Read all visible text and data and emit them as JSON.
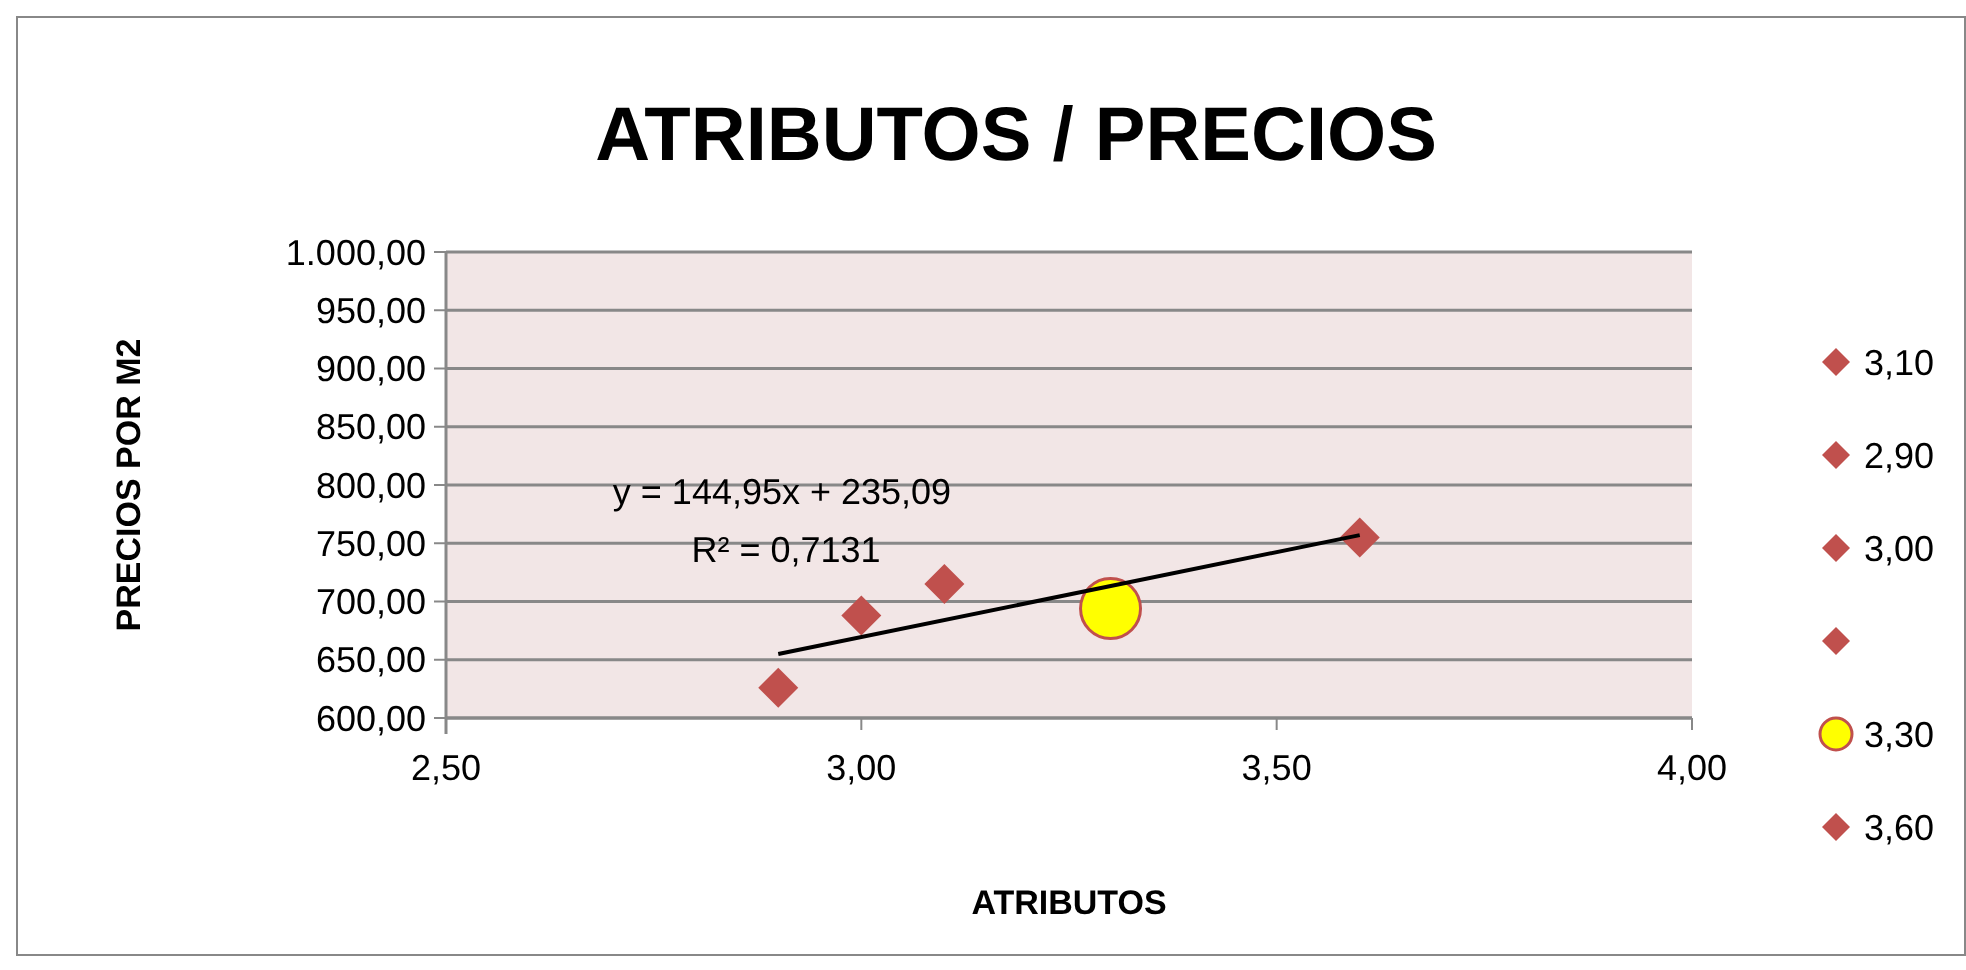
{
  "chart_data": {
    "type": "scatter",
    "title": "ATRIBUTOS / PRECIOS",
    "xlabel": "ATRIBUTOS",
    "ylabel": "PRECIOS POR M2",
    "xlim": [
      2.5,
      4
    ],
    "xticks": [
      {
        "value": 2.5,
        "label": "2,50"
      },
      {
        "value": 3,
        "label": "3,00"
      },
      {
        "value": 3.5,
        "label": "3,50"
      },
      {
        "value": 4,
        "label": "4,00"
      }
    ],
    "ylim": [
      600,
      1000
    ],
    "yticks": [
      {
        "value": 600,
        "label": "600,00"
      },
      {
        "value": 650,
        "label": "650,00"
      },
      {
        "value": 700,
        "label": "700,00"
      },
      {
        "value": 750,
        "label": "750,00"
      },
      {
        "value": 800,
        "label": "800,00"
      },
      {
        "value": 850,
        "label": "850,00"
      },
      {
        "value": 900,
        "label": "900,00"
      },
      {
        "value": 950,
        "label": "950,00"
      },
      {
        "value": 1000,
        "label": "1.000,00"
      }
    ],
    "grid": "y",
    "legend": "right",
    "marker": "diamond",
    "series": [
      {
        "name": "3,10",
        "color": "#c0504d",
        "x": [
          3.1
        ],
        "values": [
          715
        ]
      },
      {
        "name": "2,90",
        "color": "#c0504d",
        "x": [
          2.9
        ],
        "values": [
          626
        ]
      },
      {
        "name": "3,00",
        "color": "#c0504d",
        "x": [
          3.0
        ],
        "values": [
          688
        ]
      },
      {
        "color": "#c0504d",
        "x": [
          null
        ],
        "values": [
          null
        ]
      },
      {
        "name": "3,30",
        "color": "#ffff00",
        "marker": "circle",
        "x": [
          3.3
        ],
        "values": [
          694
        ]
      },
      {
        "name": "3,60",
        "color": "#c0504d",
        "x": [
          3.6
        ],
        "values": [
          755
        ]
      },
      {
        "type": "line",
        "color": "#000000",
        "marker": "none",
        "x": [
          2.9,
          3.6
        ],
        "values": [
          655,
          757
        ]
      }
    ],
    "annotations": [
      "y = 144,95x + 235,09",
      "R² = 0,7131"
    ]
  }
}
